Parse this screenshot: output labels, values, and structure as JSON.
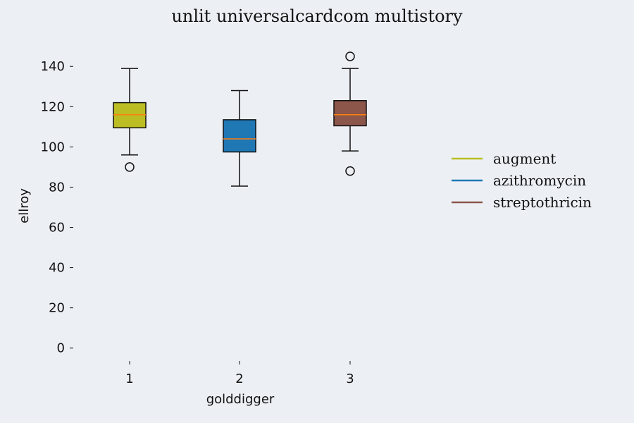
{
  "chart_data": {
    "type": "box",
    "title": "unlit universalcardcom multistory",
    "xlabel": "golddigger",
    "ylabel": "ellroy",
    "categories": [
      "1",
      "2",
      "3"
    ],
    "ylim": [
      -5,
      152
    ],
    "yticks": [
      0,
      20,
      40,
      60,
      80,
      100,
      120,
      140
    ],
    "grid": false,
    "legend_position": "right",
    "series": [
      {
        "name": "augment",
        "color": "#bcbd22",
        "whisker_low": 96,
        "q1": 109.5,
        "median": 116,
        "q3": 122,
        "whisker_high": 139,
        "outliers": [
          90
        ]
      },
      {
        "name": "azithromycin",
        "color": "#1f77b4",
        "whisker_low": 80.5,
        "q1": 97.5,
        "median": 104,
        "q3": 113.5,
        "whisker_high": 128,
        "outliers": []
      },
      {
        "name": "streptothricin",
        "color": "#8c564b",
        "whisker_low": 98,
        "q1": 110.5,
        "median": 116,
        "q3": 123,
        "whisker_high": 139,
        "outliers": [
          145,
          88
        ]
      }
    ],
    "median_color": "#ff7f0e"
  }
}
